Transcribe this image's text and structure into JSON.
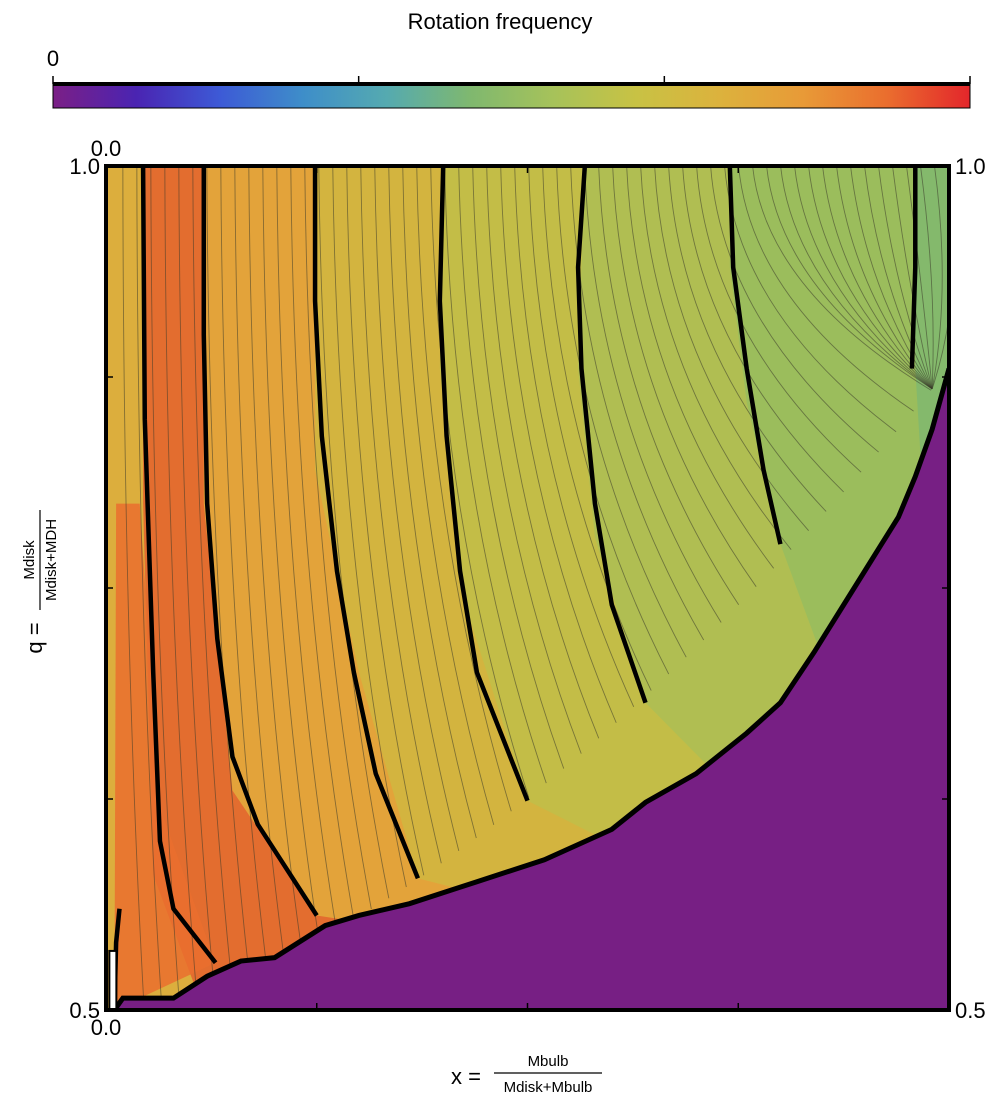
{
  "chart_data": {
    "type": "heatmap",
    "colorbar": {
      "title": "Rotation frequency",
      "min_label": "0",
      "colormap": [
        "#7b1f86",
        "#4a24b2",
        "#3d5ad6",
        "#3e8ec9",
        "#55aab0",
        "#7fb86f",
        "#a6c25a",
        "#c8c244",
        "#dcb23d",
        "#e89a37",
        "#ea6e2e",
        "#e3262b"
      ],
      "num_ticks": 4
    },
    "xaxis": {
      "label_prefix": "x =",
      "label_numerator": "Mbulb",
      "label_denominator": "Mdisk+Mbulb",
      "min": 0.0,
      "max": 0.5,
      "min_label": "0.0",
      "max_label": "0.5",
      "num_ticks": 5
    },
    "yaxis": {
      "label_prefix": "q =",
      "label_numerator": "Mdisk",
      "label_denominator": "Mdisk+MDH",
      "min": 0.5,
      "max": 1.0,
      "min_label": "0.5",
      "max_label": "1.0",
      "num_ticks": 5
    },
    "top_left_label": "0.0",
    "right_top_label": "1.0",
    "right_bottom_label": "0.5",
    "undefined_region_color": "#771f84",
    "undefined_region_boundary": [
      [
        0.005,
        0.5
      ],
      [
        0.01,
        0.507
      ],
      [
        0.04,
        0.507
      ],
      [
        0.06,
        0.52
      ],
      [
        0.08,
        0.529
      ],
      [
        0.1,
        0.531
      ],
      [
        0.13,
        0.55
      ],
      [
        0.15,
        0.556
      ],
      [
        0.18,
        0.563
      ],
      [
        0.22,
        0.576
      ],
      [
        0.26,
        0.589
      ],
      [
        0.3,
        0.607
      ],
      [
        0.32,
        0.623
      ],
      [
        0.35,
        0.64
      ],
      [
        0.38,
        0.664
      ],
      [
        0.4,
        0.682
      ],
      [
        0.42,
        0.712
      ],
      [
        0.44,
        0.744
      ],
      [
        0.45,
        0.76
      ],
      [
        0.46,
        0.776
      ],
      [
        0.47,
        0.792
      ],
      [
        0.48,
        0.816
      ],
      [
        0.49,
        0.844
      ],
      [
        0.5,
        0.88
      ],
      [
        0.5,
        0.5
      ]
    ],
    "bands": [
      {
        "edge": [
          0.005,
          0.5,
          0.015,
          0.8,
          0.0,
          1.0
        ],
        "color": "#dcae3d"
      },
      {
        "edge": [
          0.058,
          0.5,
          0.028,
          0.58,
          0.022,
          0.8,
          0.022,
          1.0
        ],
        "color": "#e36d2f"
      },
      {
        "edge": [
          0.125,
          0.556,
          0.075,
          0.63,
          0.058,
          0.8,
          0.058,
          1.0
        ],
        "color": "#e3a33a"
      },
      {
        "edge": [
          0.185,
          0.578,
          0.15,
          0.7,
          0.124,
          0.82,
          0.124,
          1.0
        ],
        "color": "#d3b43f"
      },
      {
        "edge": [
          0.25,
          0.624,
          0.21,
          0.75,
          0.198,
          0.88,
          0.2,
          1.0
        ],
        "color": "#c3bd47"
      },
      {
        "edge": [
          0.32,
          0.682,
          0.29,
          0.78,
          0.28,
          0.88,
          0.284,
          1.0
        ],
        "color": "#b0be52"
      },
      {
        "edge": [
          0.4,
          0.776,
          0.38,
          0.86,
          0.37,
          0.94,
          0.37,
          1.0
        ],
        "color": "#9bbd5c"
      },
      {
        "edge": [
          0.48,
          0.88,
          0.48,
          0.96,
          0.48,
          1.0
        ],
        "color": "#84b96c"
      }
    ],
    "thick_contours": [
      [
        [
          0.005,
          0.5
        ],
        [
          0.006,
          0.54
        ],
        [
          0.008,
          0.56
        ]
      ],
      [
        [
          0.065,
          0.528
        ],
        [
          0.04,
          0.56
        ],
        [
          0.032,
          0.6
        ],
        [
          0.028,
          0.7
        ],
        [
          0.023,
          0.85
        ],
        [
          0.022,
          1.0
        ]
      ],
      [
        [
          0.125,
          0.556
        ],
        [
          0.09,
          0.61
        ],
        [
          0.075,
          0.65
        ],
        [
          0.066,
          0.72
        ],
        [
          0.06,
          0.8
        ],
        [
          0.058,
          0.9
        ],
        [
          0.058,
          1.0
        ]
      ],
      [
        [
          0.185,
          0.578
        ],
        [
          0.16,
          0.64
        ],
        [
          0.147,
          0.7
        ],
        [
          0.137,
          0.76
        ],
        [
          0.128,
          0.84
        ],
        [
          0.124,
          0.92
        ],
        [
          0.124,
          1.0
        ]
      ],
      [
        [
          0.25,
          0.624
        ],
        [
          0.22,
          0.7
        ],
        [
          0.21,
          0.76
        ],
        [
          0.202,
          0.84
        ],
        [
          0.198,
          0.92
        ],
        [
          0.2,
          1.0
        ]
      ],
      [
        [
          0.32,
          0.682
        ],
        [
          0.3,
          0.74
        ],
        [
          0.29,
          0.8
        ],
        [
          0.282,
          0.88
        ],
        [
          0.28,
          0.94
        ],
        [
          0.284,
          1.0
        ]
      ],
      [
        [
          0.4,
          0.776
        ],
        [
          0.39,
          0.82
        ],
        [
          0.38,
          0.88
        ],
        [
          0.372,
          0.94
        ],
        [
          0.37,
          1.0
        ]
      ],
      [
        [
          0.478,
          0.88
        ],
        [
          0.48,
          0.94
        ],
        [
          0.48,
          1.0
        ]
      ]
    ],
    "lowq_region": {
      "color": "#ea6e2e",
      "upper_fraction": 0.5
    }
  }
}
